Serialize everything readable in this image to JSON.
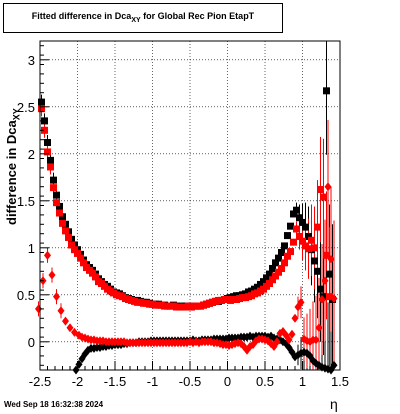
{
  "title": {
    "main": "Fitted difference in Dca",
    "sub": "XY",
    "rest": " for Global Rec Pion EtapT"
  },
  "ylabel": {
    "main": "difference in Dca",
    "sub": "XY"
  },
  "xlabel": "η",
  "timestamp": "Wed Sep 18 16:32:38 2024",
  "chart_data": {
    "type": "scatter",
    "xlim": [
      -2.5,
      1.5
    ],
    "ylim": [
      -0.3,
      3.2
    ],
    "x_ticks": [
      "-2.5",
      "-2",
      "-1.5",
      "-1",
      "-0.5",
      "0",
      "0.5",
      "1",
      "1.5"
    ],
    "x_tick_values": [
      -2.5,
      -2,
      -1.5,
      -1,
      -0.5,
      0,
      0.5,
      1,
      1.5
    ],
    "y_ticks": [
      "0",
      "0.5",
      "1",
      "1.5",
      "2",
      "2.5",
      "3"
    ],
    "y_tick_values": [
      0,
      0.5,
      1,
      1.5,
      2,
      2.5,
      3
    ],
    "grid": true,
    "colors": {
      "black": "#000000",
      "red": "#ff0000"
    },
    "series": [
      {
        "marker": "square",
        "color": "#000000",
        "x": [
          -2.48,
          -2.44,
          -2.4,
          -2.36,
          -2.32,
          -2.28,
          -2.24,
          -2.2,
          -2.16,
          -2.12,
          -2.08,
          -2.04,
          -2.0,
          -1.96,
          -1.92,
          -1.88,
          -1.84,
          -1.8,
          -1.76,
          -1.72,
          -1.68,
          -1.64,
          -1.6,
          -1.56,
          -1.52,
          -1.48,
          -1.44,
          -1.4,
          -1.36,
          -1.32,
          -1.28,
          -1.24,
          -1.2,
          -1.16,
          -1.12,
          -1.08,
          -1.04,
          -1.0,
          -0.96,
          -0.92,
          -0.88,
          -0.84,
          -0.8,
          -0.76,
          -0.72,
          -0.68,
          -0.64,
          -0.6,
          -0.56,
          -0.52,
          -0.48,
          -0.44,
          -0.4,
          -0.36,
          -0.32,
          -0.28,
          -0.24,
          -0.2,
          -0.16,
          -0.12,
          -0.08,
          -0.04,
          0.0,
          0.04,
          0.08,
          0.12,
          0.16,
          0.2,
          0.24,
          0.28,
          0.32,
          0.36,
          0.4,
          0.44,
          0.48,
          0.52,
          0.56,
          0.6,
          0.64,
          0.68,
          0.72,
          0.76,
          0.8,
          0.84,
          0.88,
          0.92,
          0.96,
          1.0,
          1.04,
          1.08,
          1.12,
          1.16,
          1.2,
          1.24,
          1.28,
          1.32,
          1.36,
          1.4
        ],
        "y": [
          2.55,
          2.35,
          2.12,
          1.93,
          1.72,
          1.56,
          1.44,
          1.33,
          1.25,
          1.17,
          1.09,
          1.03,
          0.98,
          0.93,
          0.87,
          0.82,
          0.79,
          0.76,
          0.72,
          0.67,
          0.64,
          0.61,
          0.59,
          0.56,
          0.53,
          0.52,
          0.51,
          0.49,
          0.47,
          0.46,
          0.45,
          0.44,
          0.44,
          0.43,
          0.42,
          0.42,
          0.41,
          0.4,
          0.4,
          0.4,
          0.39,
          0.39,
          0.38,
          0.38,
          0.39,
          0.38,
          0.37,
          0.38,
          0.38,
          0.38,
          0.37,
          0.38,
          0.38,
          0.38,
          0.39,
          0.4,
          0.41,
          0.42,
          0.43,
          0.43,
          0.44,
          0.45,
          0.46,
          0.47,
          0.48,
          0.49,
          0.49,
          0.5,
          0.51,
          0.53,
          0.54,
          0.56,
          0.58,
          0.61,
          0.64,
          0.68,
          0.72,
          0.78,
          0.84,
          0.89,
          0.95,
          1.02,
          1.13,
          1.23,
          1.36,
          1.4,
          1.32,
          1.27,
          1.22,
          1.12,
          0.98,
          0.86,
          0.75,
          0.56,
          0.48,
          2.67,
          0.72,
          0.45
        ]
      },
      {
        "marker": "square",
        "color": "#ff0000",
        "x": [
          -2.48,
          -2.44,
          -2.4,
          -2.36,
          -2.32,
          -2.28,
          -2.24,
          -2.2,
          -2.16,
          -2.12,
          -2.08,
          -2.04,
          -2.0,
          -1.96,
          -1.92,
          -1.88,
          -1.84,
          -1.8,
          -1.76,
          -1.72,
          -1.68,
          -1.64,
          -1.6,
          -1.56,
          -1.52,
          -1.48,
          -1.44,
          -1.4,
          -1.36,
          -1.32,
          -1.28,
          -1.24,
          -1.2,
          -1.16,
          -1.12,
          -1.08,
          -1.04,
          -1.0,
          -0.96,
          -0.92,
          -0.88,
          -0.84,
          -0.8,
          -0.76,
          -0.72,
          -0.68,
          -0.64,
          -0.6,
          -0.56,
          -0.52,
          -0.48,
          -0.44,
          -0.4,
          -0.36,
          -0.32,
          -0.28,
          -0.24,
          -0.2,
          -0.16,
          -0.12,
          -0.08,
          -0.04,
          0.0,
          0.04,
          0.08,
          0.12,
          0.16,
          0.2,
          0.24,
          0.28,
          0.32,
          0.36,
          0.4,
          0.44,
          0.48,
          0.52,
          0.56,
          0.6,
          0.64,
          0.68,
          0.72,
          0.76,
          0.8,
          0.84,
          0.88,
          0.92,
          0.96,
          1.0,
          1.04,
          1.08,
          1.12,
          1.16,
          1.2,
          1.24,
          1.28,
          1.32,
          1.36
        ],
        "y": [
          2.48,
          2.25,
          2.02,
          1.86,
          1.64,
          1.48,
          1.37,
          1.26,
          1.18,
          1.11,
          1.03,
          0.98,
          0.94,
          0.89,
          0.84,
          0.79,
          0.76,
          0.73,
          0.69,
          0.64,
          0.62,
          0.59,
          0.56,
          0.54,
          0.52,
          0.5,
          0.49,
          0.48,
          0.46,
          0.45,
          0.44,
          0.43,
          0.42,
          0.42,
          0.41,
          0.41,
          0.4,
          0.4,
          0.39,
          0.39,
          0.39,
          0.38,
          0.38,
          0.38,
          0.38,
          0.37,
          0.37,
          0.37,
          0.37,
          0.38,
          0.37,
          0.38,
          0.38,
          0.38,
          0.39,
          0.4,
          0.41,
          0.42,
          0.43,
          0.44,
          0.44,
          0.45,
          0.45,
          0.44,
          0.45,
          0.45,
          0.46,
          0.47,
          0.47,
          0.48,
          0.49,
          0.51,
          0.52,
          0.54,
          0.56,
          0.59,
          0.62,
          0.66,
          0.7,
          0.74,
          0.78,
          0.84,
          0.91,
          0.96,
          1.06,
          1.2,
          1.12,
          1.07,
          1.02,
          0.99,
          1.08,
          1.0,
          1.22,
          1.62,
          1.54,
          0.92,
          0.48
        ]
      },
      {
        "marker": "diamond",
        "color": "#000000",
        "x": [
          -2.02,
          -1.98,
          -1.94,
          -1.9,
          -1.86,
          -1.82,
          -1.78,
          -1.74,
          -1.7,
          -1.66,
          -1.62,
          -1.58,
          -1.54,
          -1.5,
          -1.46,
          -1.42,
          -1.38,
          -1.34,
          -1.3,
          -1.26,
          -1.22,
          -1.18,
          -1.14,
          -1.1,
          -1.06,
          -1.02,
          -0.98,
          -0.94,
          -0.9,
          -0.86,
          -0.82,
          -0.78,
          -0.74,
          -0.7,
          -0.66,
          -0.62,
          -0.58,
          -0.54,
          -0.5,
          -0.46,
          -0.42,
          -0.38,
          -0.34,
          -0.3,
          -0.26,
          -0.22,
          -0.18,
          -0.14,
          -0.1,
          -0.06,
          -0.02,
          0.02,
          0.06,
          0.1,
          0.14,
          0.18,
          0.22,
          0.26,
          0.3,
          0.34,
          0.38,
          0.42,
          0.46,
          0.5,
          0.54,
          0.58,
          0.62,
          0.66,
          0.7,
          0.74,
          0.78,
          0.82,
          0.86,
          0.9,
          0.94,
          0.98,
          1.02,
          1.06,
          1.1,
          1.14,
          1.18,
          1.22,
          1.26,
          1.3,
          1.34,
          1.38,
          1.42
        ],
        "y": [
          -0.3,
          -0.24,
          -0.18,
          -0.13,
          -0.09,
          -0.07,
          -0.07,
          -0.06,
          -0.06,
          -0.05,
          -0.05,
          -0.04,
          -0.04,
          -0.03,
          -0.03,
          -0.03,
          -0.02,
          -0.02,
          -0.01,
          -0.01,
          -0.01,
          0.0,
          0.0,
          0.0,
          0.0,
          0.01,
          0.01,
          0.01,
          0.01,
          0.01,
          0.01,
          0.01,
          0.01,
          0.01,
          0.01,
          0.01,
          0.01,
          0.01,
          0.01,
          0.02,
          0.01,
          0.01,
          0.02,
          0.02,
          0.02,
          0.02,
          0.03,
          0.03,
          0.03,
          0.03,
          0.03,
          0.04,
          0.04,
          0.04,
          0.04,
          0.05,
          0.05,
          0.05,
          0.06,
          0.05,
          0.06,
          0.06,
          0.06,
          0.06,
          0.05,
          0.06,
          0.04,
          0.03,
          0.02,
          0.0,
          -0.02,
          -0.06,
          -0.11,
          -0.16,
          -0.14,
          -0.12,
          -0.11,
          -0.12,
          -0.15,
          -0.2,
          -0.23,
          -0.25,
          -0.27,
          -0.28,
          -0.29,
          -0.3,
          -0.25
        ]
      },
      {
        "marker": "diamond",
        "color": "#ff0000",
        "x": [
          -2.52,
          -2.46,
          -2.4,
          -2.34,
          -2.28,
          -2.22,
          -2.16,
          -2.1,
          -2.04,
          -1.98,
          -1.94,
          -1.9,
          -1.86,
          -1.82,
          -1.78,
          -1.74,
          -1.7,
          -1.66,
          -1.62,
          -1.58,
          -1.54,
          -1.5,
          -1.46,
          -1.42,
          -1.38,
          -1.34,
          -1.3,
          -1.26,
          -1.22,
          -1.18,
          -1.14,
          -1.1,
          -1.06,
          -1.02,
          -0.98,
          -0.94,
          -0.9,
          -0.86,
          -0.82,
          -0.78,
          -0.74,
          -0.7,
          -0.66,
          -0.62,
          -0.58,
          -0.54,
          -0.5,
          -0.46,
          -0.42,
          -0.38,
          -0.34,
          -0.3,
          -0.26,
          -0.22,
          -0.18,
          -0.14,
          -0.1,
          -0.06,
          -0.02,
          0.02,
          0.06,
          0.1,
          0.14,
          0.18,
          0.22,
          0.26,
          0.3,
          0.34,
          0.38,
          0.42,
          0.46,
          0.5,
          0.54,
          0.58,
          0.62,
          0.66,
          0.7,
          0.74,
          0.78,
          0.82,
          0.86,
          0.9,
          0.94,
          0.98,
          1.02,
          1.06,
          1.1,
          1.14,
          1.18,
          1.22,
          1.26,
          1.3,
          1.34,
          1.38,
          1.42
        ],
        "y": [
          0.35,
          0.65,
          0.92,
          0.71,
          0.48,
          0.33,
          0.22,
          0.15,
          0.1,
          0.07,
          0.05,
          0.04,
          0.03,
          0.02,
          0.02,
          0.01,
          0.01,
          0.01,
          0.0,
          0.0,
          0.0,
          0.0,
          0.0,
          0.0,
          0.0,
          -0.01,
          -0.01,
          -0.01,
          -0.01,
          -0.01,
          -0.01,
          -0.01,
          -0.01,
          -0.01,
          -0.01,
          -0.01,
          -0.01,
          -0.01,
          -0.01,
          -0.01,
          -0.01,
          -0.01,
          -0.01,
          -0.01,
          -0.01,
          -0.01,
          0.0,
          -0.01,
          0.0,
          -0.01,
          0.0,
          0.0,
          0.0,
          0.0,
          -0.01,
          -0.01,
          -0.02,
          -0.03,
          -0.03,
          -0.04,
          -0.03,
          -0.02,
          -0.01,
          -0.02,
          -0.05,
          -0.09,
          -0.05,
          -0.03,
          0.01,
          0.03,
          0.03,
          0.02,
          0.01,
          -0.02,
          -0.05,
          0.0,
          0.09,
          0.11,
          0.07,
          0.02,
          0.08,
          0.25,
          0.37,
          0.42,
          0.03,
          0.01,
          0.0,
          0.02,
          0.02,
          0.15,
          0.45,
          0.65,
          1.65,
          0.88,
          0.46
        ]
      }
    ]
  }
}
